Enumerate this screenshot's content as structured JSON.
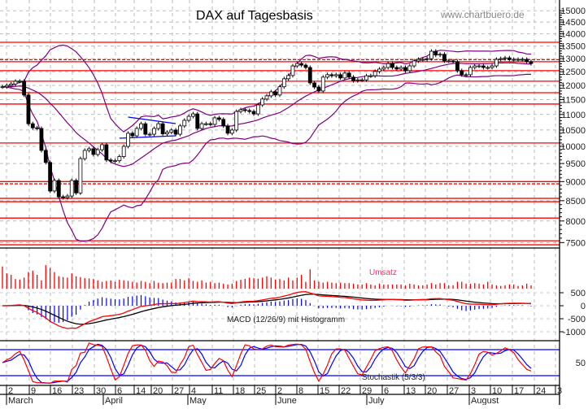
{
  "chart_data": {
    "type": "candlestick",
    "title": "DAX auf Tagesbasis",
    "watermark": "www.chartbuero.de",
    "y_scale": "log",
    "ylim": [
      7300,
      15500
    ],
    "y_ticks": [
      7500,
      8000,
      8500,
      9000,
      9500,
      10000,
      10500,
      11000,
      11500,
      12000,
      12500,
      13000,
      13500,
      14000,
      14500,
      15000
    ],
    "grid": true,
    "closes": [
      11950,
      12000,
      12050,
      12150,
      12150,
      11660,
      10700,
      10570,
      10550,
      9880,
      9530,
      8750,
      9030,
      8600,
      8580,
      8620,
      9030,
      8700,
      9640,
      9880,
      9930,
      9760,
      9900,
      10050,
      9600,
      9570,
      9580,
      9700,
      10000,
      10400,
      10320,
      10550,
      10700,
      10370,
      10370,
      10550,
      10700,
      10380,
      10430,
      10500,
      10370,
      10630,
      10810,
      10940,
      11020,
      10550,
      10700,
      10700,
      10680,
      10890,
      10840,
      10630,
      10400,
      10500,
      11100,
      11160,
      11130,
      11100,
      11020,
      11320,
      11520,
      11630,
      11770,
      11660,
      11950,
      12240,
      12360,
      12720,
      12810,
      12750,
      12660,
      12090,
      11940,
      11800,
      12300,
      12390,
      12350,
      12390,
      12270,
      12450,
      12300,
      12170,
      12200,
      12200,
      12350,
      12350,
      12510,
      12600,
      12660,
      12810,
      12660,
      12600,
      12660,
      12540,
      12720,
      12910,
      12970,
      12970,
      13000,
      13290,
      13140,
      13170,
      12910,
      12910,
      12880,
      12540,
      12390,
      12390,
      12660,
      12720,
      12720,
      12660,
      12660,
      12720,
      12970,
      13000,
      13030,
      12970,
      12970,
      12970,
      12970,
      12880,
      12810
    ],
    "horizontal_lines": [
      {
        "value": 13650,
        "style": "solid"
      },
      {
        "value": 12960,
        "style": "dashed"
      },
      {
        "value": 12880,
        "style": "solid"
      },
      {
        "value": 12540,
        "style": "solid"
      },
      {
        "value": 12150,
        "style": "solid"
      },
      {
        "value": 11740,
        "style": "solid"
      },
      {
        "value": 11350,
        "style": "solid"
      },
      {
        "value": 10100,
        "style": "solid"
      },
      {
        "value": 9000,
        "style": "solid"
      },
      {
        "value": 8940,
        "style": "dashed"
      },
      {
        "value": 8560,
        "style": "solid"
      },
      {
        "value": 8475,
        "style": "solid"
      },
      {
        "value": 8070,
        "style": "solid"
      },
      {
        "value": 7540,
        "style": "solid"
      },
      {
        "value": 7450,
        "style": "solid"
      }
    ],
    "trendlines": [
      {
        "from_day": 29,
        "from_value": 10915,
        "to_day": 40,
        "to_value": 10705
      },
      {
        "from_day": 27,
        "from_value": 10246,
        "to_day": 40,
        "to_value": 10321
      }
    ],
    "bollinger": {
      "period": 20,
      "std": 2
    },
    "volume_label": "Umsatz",
    "volume": [
      80,
      55,
      50,
      35,
      33,
      40,
      60,
      65,
      50,
      30,
      85,
      75,
      60,
      45,
      42,
      40,
      55,
      45,
      42,
      38,
      37,
      35,
      30,
      25,
      28,
      30,
      25,
      32,
      30,
      28,
      25,
      22,
      28,
      25,
      20,
      28,
      22,
      20,
      22,
      22,
      35,
      35,
      30,
      38,
      28,
      25,
      30,
      22,
      25,
      20,
      22,
      18,
      15,
      18,
      28,
      32,
      35,
      40,
      38,
      36,
      40,
      45,
      40,
      33,
      35,
      30,
      40,
      30,
      40,
      50,
      25,
      70,
      30,
      25,
      22,
      25,
      22,
      20,
      22,
      20,
      20,
      18,
      15,
      15,
      20,
      15,
      12,
      18,
      15,
      15,
      15,
      15,
      15,
      12,
      18,
      15,
      12,
      12,
      15,
      20,
      15,
      20,
      20,
      12,
      12,
      25,
      25,
      18,
      18,
      20,
      18,
      15,
      25,
      15,
      12,
      10,
      12,
      15,
      15,
      10,
      12,
      18,
      12
    ],
    "macd": {
      "label": "MACD (12/26/9) mit Histogramm",
      "fast": 12,
      "slow": 26,
      "signal": 9,
      "y_ticks": [
        "500",
        "0",
        "-500",
        "-1000"
      ]
    },
    "stochastic": {
      "label": "Stochastik (5/3/3)",
      "k": 5,
      "smooth": 3,
      "d": 3,
      "levels": [
        20,
        80
      ],
      "y_tick": "50"
    },
    "x_week_labels": [
      "2",
      "9",
      "16",
      "23",
      "30",
      "6",
      "14",
      "20",
      "27",
      "4",
      "11",
      "18",
      "25",
      "2",
      "8",
      "15",
      "22",
      "29",
      "6",
      "13",
      "20",
      "27",
      "3",
      "10",
      "17",
      "24",
      "3"
    ],
    "x_month_labels": [
      "March",
      "April",
      "May",
      "June",
      "July",
      "August"
    ],
    "colors": {
      "up": "#ffffff",
      "down": "#000000",
      "levels": "#ff0000",
      "bands": "#800080",
      "trend": "#0000ff",
      "macd": "#ff0000",
      "signal": "#000000",
      "histogram": "#0000ff",
      "stoch_k": "#ff0000",
      "stoch_d": "#0000ff",
      "volume": "#ff0000"
    }
  }
}
